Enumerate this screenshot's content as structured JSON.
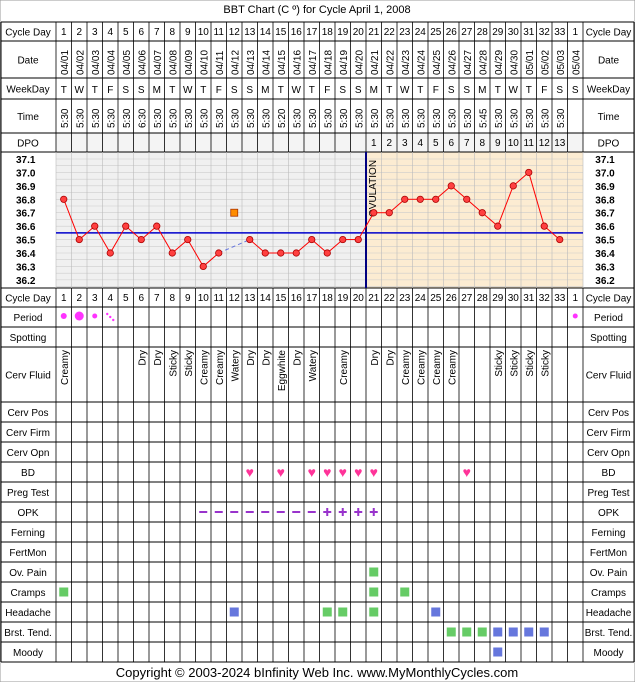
{
  "title": "BBT Chart (C º) for Cycle April 1, 2008",
  "footer": "Copyright © 2003-2024 bInfinity Web Inc.    www.MyMonthlyCycles.com",
  "colors": {
    "grid": "#000000",
    "temp_line": "#ff0000",
    "temp_point_fill": "#ff4040",
    "coverline": "#0000cc",
    "ovulation_line": "#000080",
    "luteal_shade": "#fcecd2",
    "follicular_shade": "#f0f0f0",
    "heart": "#ff3399",
    "opk": "#9933cc",
    "period": "#ff33ff",
    "green_box": "#66cc66",
    "blue_box": "#6677dd"
  },
  "row_labels": {
    "cycle_day": "Cycle Day",
    "date": "Date",
    "weekday": "WeekDay",
    "time": "Time",
    "dpo": "DPO",
    "period": "Period",
    "spotting": "Spotting",
    "cerv_fluid": "Cerv Fluid",
    "cerv_pos": "Cerv Pos",
    "cerv_firm": "Cerv Firm",
    "cerv_opn": "Cerv Opn",
    "bd": "BD",
    "preg_test": "Preg Test",
    "opk": "OPK",
    "ferning": "Ferning",
    "fertmon": "FertMon",
    "ov_pain": "Ov. Pain",
    "cramps": "Cramps",
    "headache": "Headache",
    "brst_tend": "Brst. Tend.",
    "moody": "Moody"
  },
  "cycle_days": [
    "1",
    "2",
    "3",
    "4",
    "5",
    "6",
    "7",
    "8",
    "9",
    "10",
    "11",
    "12",
    "13",
    "14",
    "15",
    "16",
    "17",
    "18",
    "19",
    "20",
    "21",
    "22",
    "23",
    "24",
    "25",
    "26",
    "27",
    "28",
    "29",
    "30",
    "31",
    "32",
    "33",
    "1"
  ],
  "dates": [
    "04/01",
    "04/02",
    "04/03",
    "04/04",
    "04/05",
    "04/06",
    "04/07",
    "04/08",
    "04/09",
    "04/10",
    "04/11",
    "04/12",
    "04/13",
    "04/14",
    "04/15",
    "04/16",
    "04/17",
    "04/18",
    "04/19",
    "04/20",
    "04/21",
    "04/22",
    "04/23",
    "04/24",
    "04/25",
    "04/26",
    "04/27",
    "04/28",
    "04/29",
    "04/30",
    "05/01",
    "05/02",
    "05/03",
    "05/04"
  ],
  "weekdays": [
    "T",
    "W",
    "T",
    "F",
    "S",
    "S",
    "M",
    "T",
    "W",
    "T",
    "F",
    "S",
    "S",
    "M",
    "T",
    "W",
    "T",
    "F",
    "S",
    "S",
    "M",
    "T",
    "W",
    "T",
    "F",
    "S",
    "S",
    "M",
    "T",
    "W",
    "T",
    "F",
    "S",
    "S"
  ],
  "times": [
    "5:30",
    "5:30",
    "5:30",
    "5:30",
    "5:30",
    "6:30",
    "5:30",
    "5:30",
    "5:30",
    "5:30",
    "5:30",
    "5:30",
    "5:30",
    "5:30",
    "5:20",
    "5:30",
    "5:30",
    "5:30",
    "5:30",
    "5:30",
    "5:30",
    "5:30",
    "5:30",
    "5:30",
    "5:30",
    "5:30",
    "5:30",
    "5:45",
    "5:30",
    "5:30",
    "5:30",
    "5:30",
    "5:30",
    ""
  ],
  "dpo": [
    "",
    "",
    "",
    "",
    "",
    "",
    "",
    "",
    "",
    "",
    "",
    "",
    "",
    "",
    "",
    "",
    "",
    "",
    "",
    "",
    "1",
    "2",
    "3",
    "4",
    "5",
    "6",
    "7",
    "8",
    "9",
    "10",
    "11",
    "12",
    "13",
    ""
  ],
  "ovulation_label": "OVULATION",
  "temp_labels": [
    "37.1",
    "37.0",
    "36.9",
    "36.8",
    "36.7",
    "36.6",
    "36.5",
    "36.4",
    "36.3",
    "36.2"
  ],
  "cerv_fluid": [
    "Creamy",
    "",
    "",
    "",
    "",
    "Dry",
    "Dry",
    "Sticky",
    "Sticky",
    "Creamy",
    "Creamy",
    "Watery",
    "Dry",
    "Dry",
    "Eggwhite",
    "Dry",
    "Watery",
    "",
    "Creamy",
    "",
    "Dry",
    "Dry",
    "Creamy",
    "Creamy",
    "Creamy",
    "Creamy",
    "",
    "",
    "Sticky",
    "Sticky",
    "Sticky",
    "Sticky",
    "",
    ""
  ],
  "chart_data": {
    "type": "line",
    "title": "BBT Chart (C º) for Cycle April 1, 2008",
    "ylim": [
      36.2,
      37.1
    ],
    "coverline": 36.55,
    "ovulation_day": 20,
    "x": [
      1,
      2,
      3,
      4,
      5,
      6,
      7,
      8,
      9,
      10,
      11,
      12,
      13,
      14,
      15,
      16,
      17,
      18,
      19,
      20,
      21,
      22,
      23,
      24,
      25,
      26,
      27,
      28,
      29,
      30,
      31,
      32,
      33
    ],
    "temps": [
      36.8,
      36.5,
      36.6,
      36.4,
      36.6,
      36.5,
      36.6,
      36.4,
      36.5,
      36.3,
      36.4,
      null,
      36.5,
      36.4,
      36.4,
      36.4,
      36.5,
      36.4,
      36.5,
      36.5,
      36.7,
      36.7,
      36.8,
      36.8,
      36.8,
      36.9,
      36.8,
      36.7,
      36.6,
      36.9,
      37.0,
      36.6,
      36.5
    ],
    "excluded_temp": {
      "day": 12,
      "value": 36.7
    },
    "period": {
      "1": "heavy",
      "2": "heavy",
      "3": "medium",
      "4": "spotting",
      "34": "medium"
    },
    "bd_days": [
      13,
      15,
      17,
      18,
      19,
      20,
      21,
      27
    ],
    "opk": {
      "10": "-",
      "11": "-",
      "12": "-",
      "13": "-",
      "14": "-",
      "15": "-",
      "16": "-",
      "17": "-",
      "18": "+",
      "19": "+",
      "20": "+",
      "21": "+"
    },
    "ov_pain_days": [
      21
    ],
    "cramps_days": [
      1,
      21,
      23
    ],
    "headache_days": [
      12,
      18,
      19,
      21,
      25
    ],
    "brst_tend": {
      "26": "green",
      "27": "green",
      "28": "green",
      "29": "blue",
      "30": "blue",
      "31": "blue",
      "32": "blue"
    },
    "moody_days": [
      29
    ]
  }
}
